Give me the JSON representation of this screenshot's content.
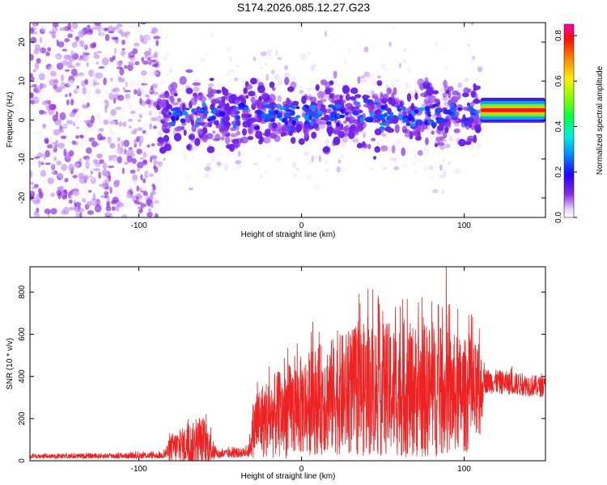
{
  "title": "S174.2026.085.12.27.G23",
  "chart_data": [
    {
      "type": "heatmap",
      "name": "spectrogram",
      "xlabel": "Height of straight line (km)",
      "ylabel": "Frequency (Hz)",
      "xlim": [
        -167,
        150
      ],
      "ylim": [
        -25,
        25
      ],
      "xticks": [
        -100,
        0,
        100
      ],
      "yticks": [
        -20,
        -10,
        0,
        10,
        20
      ],
      "colorbar": {
        "label": "Normalized spectral amplitude",
        "range": [
          0.0,
          0.85
        ],
        "ticks": [
          0.0,
          0.2,
          0.4,
          0.6,
          0.8
        ]
      },
      "features": [
        {
          "region": "noise-left",
          "x": [
            -167,
            -88
          ],
          "freq": [
            -25,
            25
          ],
          "amplitude": 0.1
        },
        {
          "region": "band-main",
          "x": [
            -88,
            110
          ],
          "center_freq": 1.5,
          "half_width_freq": 5,
          "amplitude": 0.3
        },
        {
          "region": "narrow-tone",
          "x": [
            110,
            150
          ],
          "center_freq": 2.5,
          "half_width_freq": 1,
          "amplitude": 0.8
        }
      ]
    },
    {
      "type": "line",
      "name": "snr",
      "xlabel": "Height of straight line (km)",
      "ylabel": "SNR (10 * v/v)",
      "xlim": [
        -167,
        150
      ],
      "ylim": [
        0,
        920
      ],
      "xticks": [
        -100,
        0,
        100
      ],
      "yticks": [
        0,
        200,
        400,
        600,
        800
      ],
      "color": "#ee2222",
      "envelope": [
        {
          "x": -167,
          "base": 20,
          "spread": 10
        },
        {
          "x": -85,
          "base": 25,
          "spread": 15
        },
        {
          "x": -80,
          "base": 60,
          "spread": 70
        },
        {
          "x": -60,
          "base": 90,
          "spread": 120
        },
        {
          "x": -52,
          "base": 30,
          "spread": 20
        },
        {
          "x": -33,
          "base": 40,
          "spread": 25
        },
        {
          "x": -28,
          "base": 180,
          "spread": 170
        },
        {
          "x": -10,
          "base": 230,
          "spread": 220
        },
        {
          "x": 10,
          "base": 290,
          "spread": 260
        },
        {
          "x": 40,
          "base": 340,
          "spread": 320
        },
        {
          "x": 80,
          "base": 330,
          "spread": 320
        },
        {
          "x": 110,
          "base": 300,
          "spread": 250
        },
        {
          "x": 112,
          "base": 380,
          "spread": 60
        },
        {
          "x": 150,
          "base": 350,
          "spread": 50
        }
      ],
      "peak": {
        "x": 89,
        "y": 920
      }
    }
  ]
}
